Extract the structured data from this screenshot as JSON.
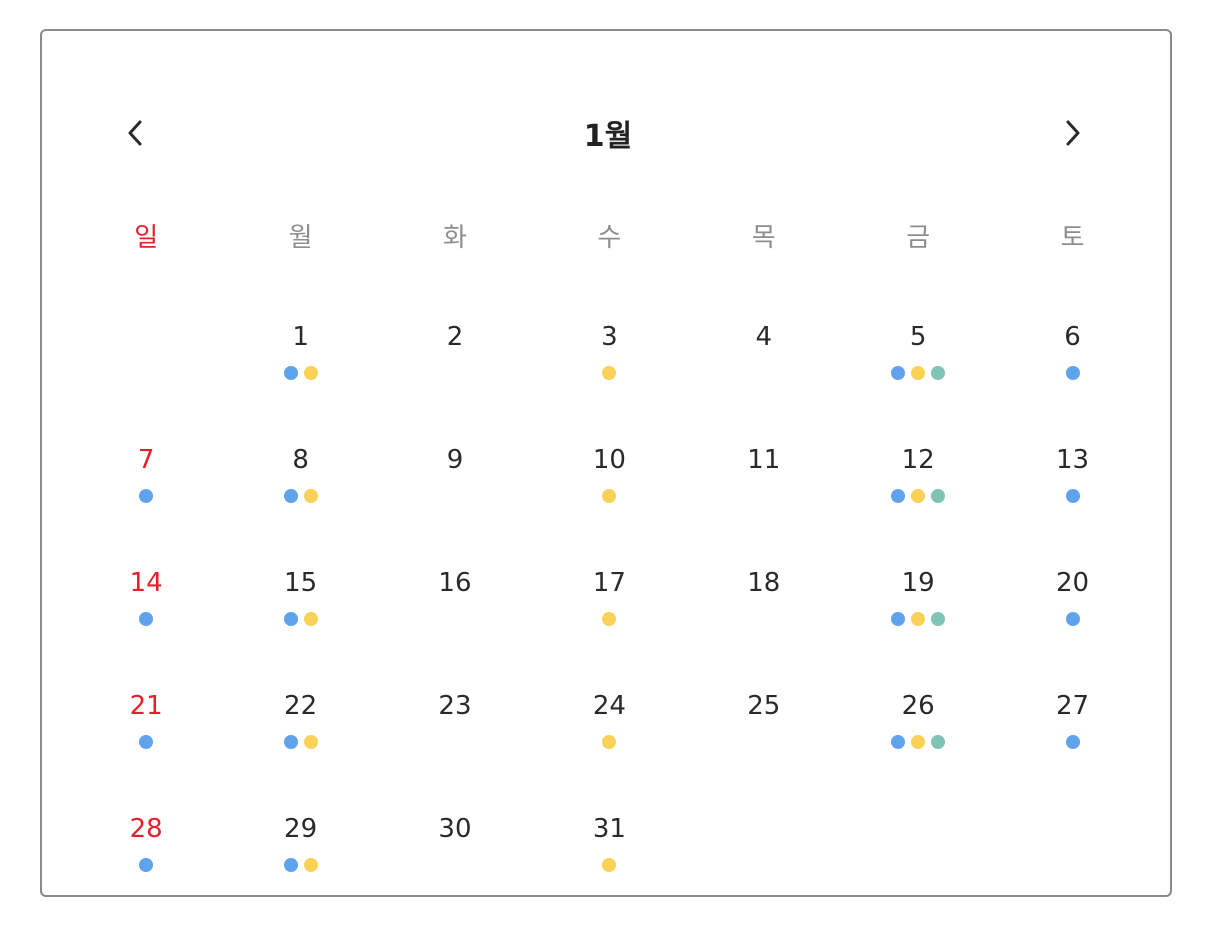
{
  "calendar": {
    "month_title": "1월",
    "weekdays": [
      "일",
      "월",
      "화",
      "수",
      "목",
      "금",
      "토"
    ],
    "first_weekday_index": 1,
    "event_colors": {
      "blue": "#5ea3ec",
      "yellow": "#f8d156",
      "teal": "#7fc3b5"
    },
    "sunday_color": "#e6202b",
    "days": [
      {
        "day": "1",
        "events": [
          "blue",
          "yellow"
        ]
      },
      {
        "day": "2",
        "events": []
      },
      {
        "day": "3",
        "events": [
          "yellow"
        ]
      },
      {
        "day": "4",
        "events": []
      },
      {
        "day": "5",
        "events": [
          "blue",
          "yellow",
          "teal"
        ]
      },
      {
        "day": "6",
        "events": [
          "blue"
        ]
      },
      {
        "day": "7",
        "events": [
          "blue"
        ]
      },
      {
        "day": "8",
        "events": [
          "blue",
          "yellow"
        ]
      },
      {
        "day": "9",
        "events": []
      },
      {
        "day": "10",
        "events": [
          "yellow"
        ]
      },
      {
        "day": "11",
        "events": []
      },
      {
        "day": "12",
        "events": [
          "blue",
          "yellow",
          "teal"
        ]
      },
      {
        "day": "13",
        "events": [
          "blue"
        ]
      },
      {
        "day": "14",
        "events": [
          "blue"
        ]
      },
      {
        "day": "15",
        "events": [
          "blue",
          "yellow"
        ]
      },
      {
        "day": "16",
        "events": []
      },
      {
        "day": "17",
        "events": [
          "yellow"
        ]
      },
      {
        "day": "18",
        "events": []
      },
      {
        "day": "19",
        "events": [
          "blue",
          "yellow",
          "teal"
        ]
      },
      {
        "day": "20",
        "events": [
          "blue"
        ]
      },
      {
        "day": "21",
        "events": [
          "blue"
        ]
      },
      {
        "day": "22",
        "events": [
          "blue",
          "yellow"
        ]
      },
      {
        "day": "23",
        "events": []
      },
      {
        "day": "24",
        "events": [
          "yellow"
        ]
      },
      {
        "day": "25",
        "events": []
      },
      {
        "day": "26",
        "events": [
          "blue",
          "yellow",
          "teal"
        ]
      },
      {
        "day": "27",
        "events": [
          "blue"
        ]
      },
      {
        "day": "28",
        "events": [
          "blue"
        ]
      },
      {
        "day": "29",
        "events": [
          "blue",
          "yellow"
        ]
      },
      {
        "day": "30",
        "events": []
      },
      {
        "day": "31",
        "events": [
          "yellow"
        ]
      }
    ]
  },
  "icons": {
    "prev": "chevron-left-icon",
    "next": "chevron-right-icon"
  }
}
